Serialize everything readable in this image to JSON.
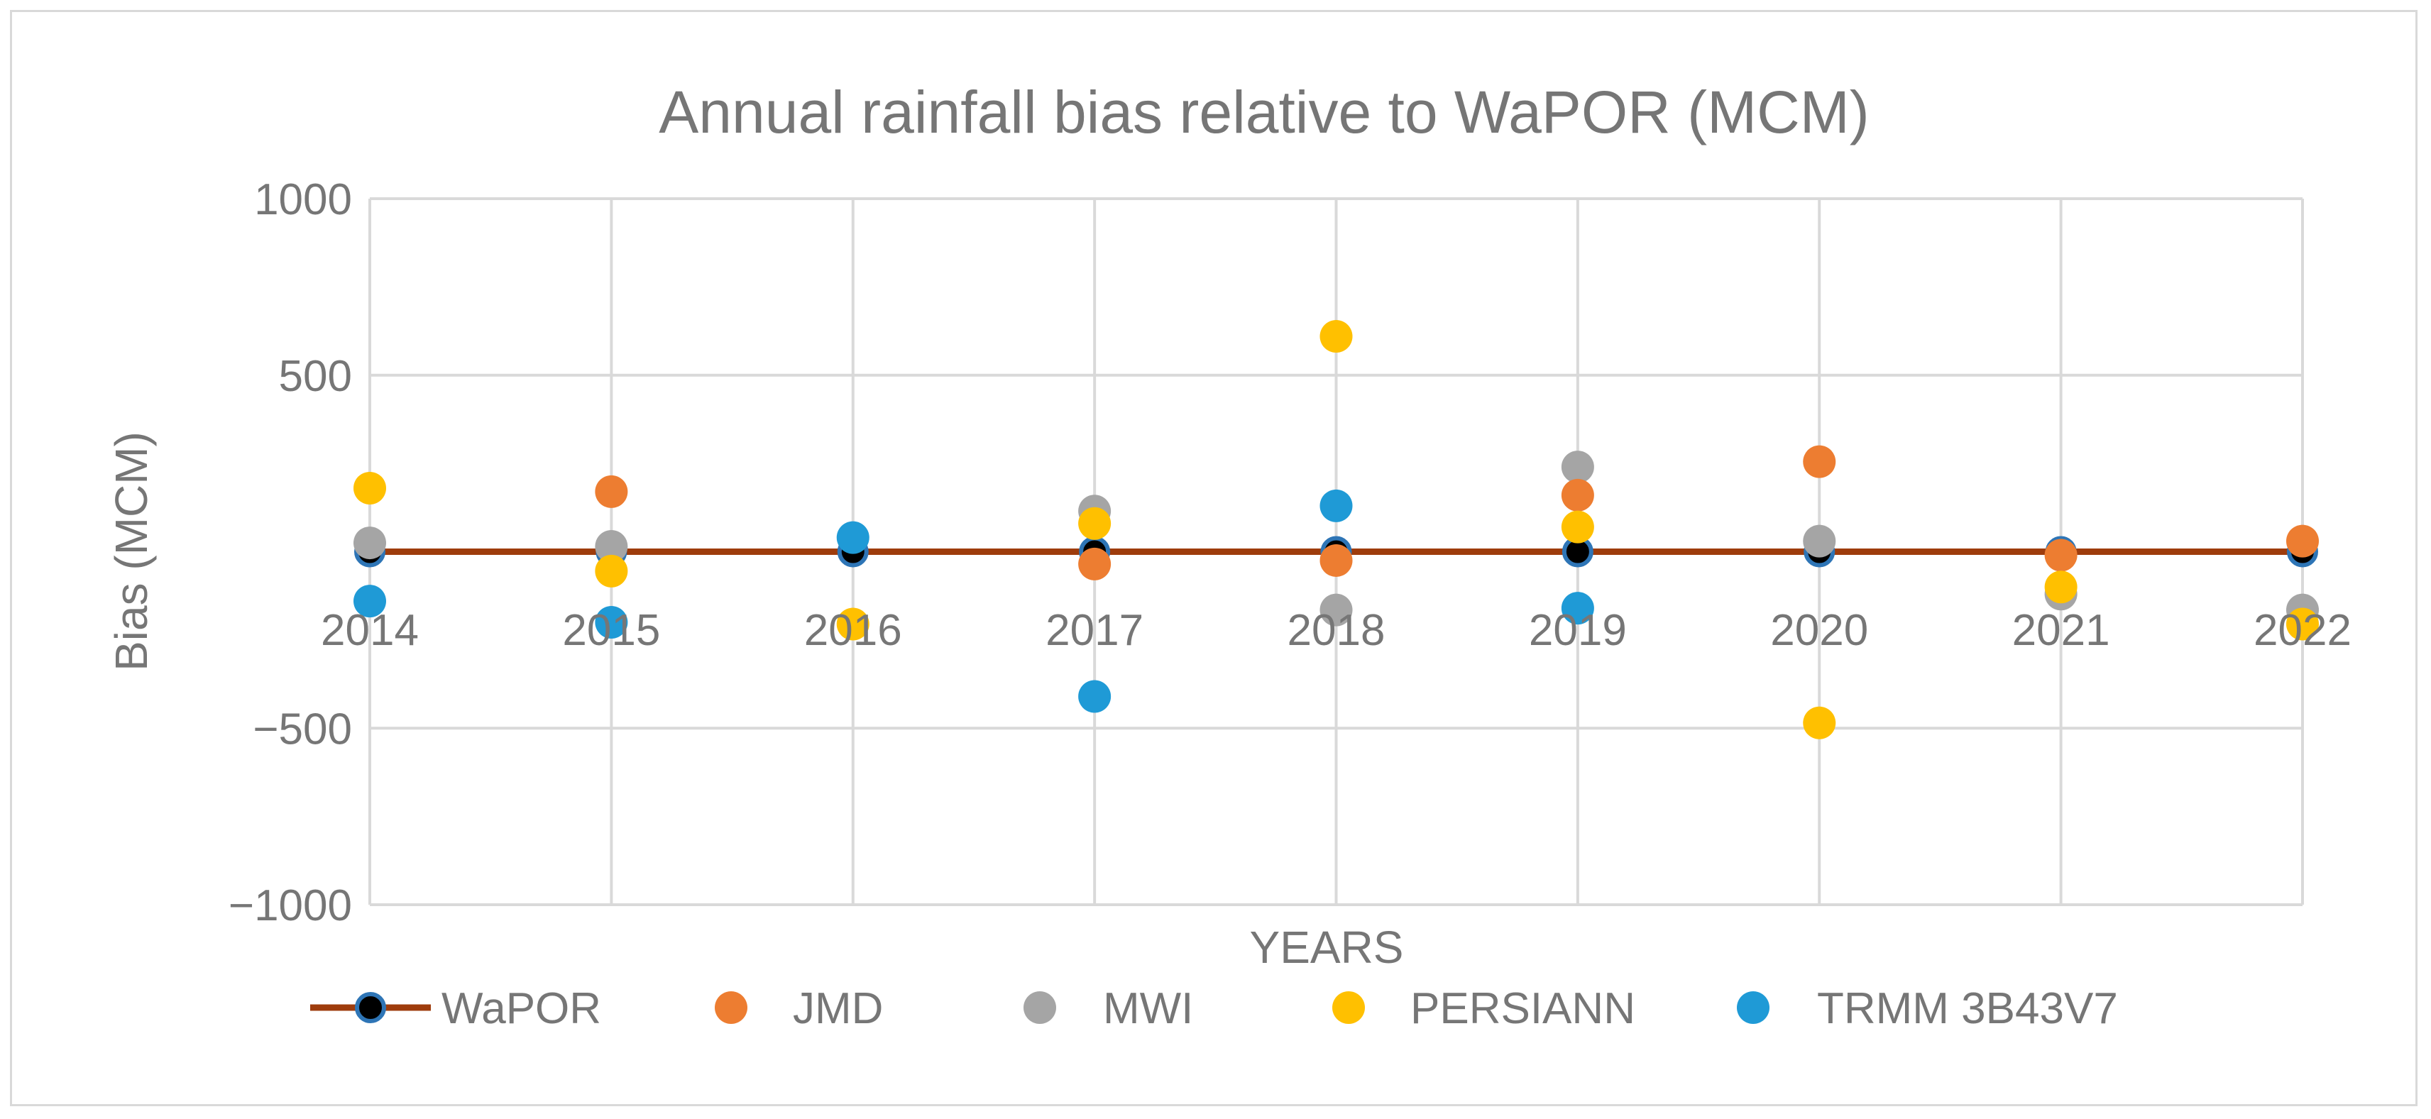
{
  "chart_data": {
    "type": "scatter",
    "title": "Annual rainfall bias relative to WaPOR (MCM)",
    "xlabel": "YEARS",
    "ylabel": "Bias (MCM)",
    "categories": [
      "2014",
      "2015",
      "2016",
      "2017",
      "2018",
      "2019",
      "2020",
      "2021",
      "2022"
    ],
    "ylim": [
      -1000,
      1000
    ],
    "yticks": [
      1000,
      500,
      -500,
      -1000
    ],
    "ytick_labels": [
      "1000",
      "500",
      "−500",
      "−1000"
    ],
    "grid": true,
    "legend_position": "bottom",
    "series": [
      {
        "name": "WaPOR",
        "color": "#000000",
        "outline": "#2e75b6",
        "line_color": "#9e3c0c",
        "values": [
          0,
          0,
          0,
          0,
          0,
          0,
          0,
          0,
          0
        ]
      },
      {
        "name": "JMD",
        "color": "#ed7d31",
        "values": [
          null,
          170,
          null,
          -35,
          -25,
          160,
          255,
          -10,
          30
        ]
      },
      {
        "name": "MWI",
        "color": "#a5a5a5",
        "values": [
          25,
          15,
          null,
          115,
          -165,
          240,
          30,
          -120,
          -165
        ]
      },
      {
        "name": "PERSIANN",
        "color": "#ffc000",
        "values": [
          180,
          -55,
          -205,
          80,
          610,
          70,
          -485,
          -100,
          -205
        ]
      },
      {
        "name": "TRMM 3B43V7",
        "color": "#1f9ad6",
        "values": [
          -140,
          -200,
          40,
          -410,
          130,
          -160,
          null,
          null,
          null
        ]
      }
    ]
  }
}
